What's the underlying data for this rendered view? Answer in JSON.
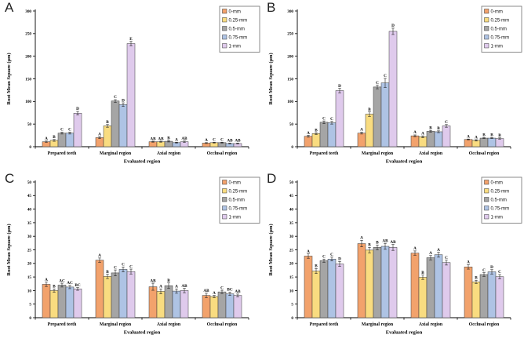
{
  "figure": {
    "background": "#ffffff",
    "axis_color": "#000000",
    "bar_border_color": "#3a3a3a",
    "error_bar_color": "#222222",
    "legend_border_color": "#7f7f7f"
  },
  "panels": [
    {
      "label": "A"
    },
    {
      "label": "B"
    },
    {
      "label": "C"
    },
    {
      "label": "D"
    }
  ],
  "chart_data": [
    {
      "type": "bar",
      "panel_label": "A",
      "ylabel": "Root Mean Square (µm)",
      "xlabel": "Evaluated region",
      "ylim": [
        0,
        300
      ],
      "ytick_step": 50,
      "grid": false,
      "legend_position": "top-right",
      "categories": [
        "Prepared teeth",
        "Marginal region",
        "Axial region",
        "Occlusal region"
      ],
      "series": [
        {
          "name": "0-mm",
          "color": "#F2A26C",
          "values": [
            11,
            20,
            11,
            8
          ],
          "errors": [
            1.5,
            2,
            1,
            1
          ],
          "letters": [
            "A",
            "A",
            "AB",
            "A"
          ]
        },
        {
          "name": "0.25-mm",
          "color": "#F9DC80",
          "values": [
            14,
            46,
            11,
            9
          ],
          "errors": [
            2,
            3,
            1,
            1
          ],
          "letters": [
            "B",
            "B",
            "AB",
            "C"
          ]
        },
        {
          "name": "0.5-mm",
          "color": "#A5A5A5",
          "values": [
            30,
            101,
            12,
            9
          ],
          "errors": [
            2,
            3,
            1.5,
            1
          ],
          "letters": [
            "C",
            "C",
            "B",
            "C"
          ]
        },
        {
          "name": "0.75-mm",
          "color": "#AEC3E4",
          "values": [
            30,
            93,
            9,
            7
          ],
          "errors": [
            2,
            4,
            1,
            1
          ],
          "letters": [
            "C",
            "D",
            "A",
            "AB"
          ]
        },
        {
          "name": "1-mm",
          "color": "#DFCAEC",
          "values": [
            74,
            228,
            11,
            7
          ],
          "errors": [
            4,
            5,
            1.5,
            1
          ],
          "letters": [
            "D",
            "E",
            "AB",
            "AB"
          ]
        }
      ]
    },
    {
      "type": "bar",
      "panel_label": "B",
      "ylabel": "Root Mean Square (µm)",
      "xlabel": "Evaluated region",
      "ylim": [
        0,
        300
      ],
      "ytick_step": 50,
      "grid": false,
      "legend_position": "top-right",
      "categories": [
        "Prepared teeth",
        "Marginal region",
        "Axial region",
        "Occlusal region"
      ],
      "series": [
        {
          "name": "0-mm",
          "color": "#F2A26C",
          "values": [
            23,
            30,
            24,
            16
          ],
          "errors": [
            2,
            2,
            2,
            1
          ],
          "letters": [
            "A",
            "A",
            "A",
            "A"
          ]
        },
        {
          "name": "0.25-mm",
          "color": "#F9DC80",
          "values": [
            29,
            72,
            22,
            14
          ],
          "errors": [
            2,
            5,
            2,
            1.5
          ],
          "letters": [
            "B",
            "B",
            "A",
            "A"
          ]
        },
        {
          "name": "0.5-mm",
          "color": "#A5A5A5",
          "values": [
            54,
            132,
            34,
            19
          ],
          "errors": [
            3,
            4,
            2,
            1
          ],
          "letters": [
            "C",
            "C",
            "B",
            "B"
          ]
        },
        {
          "name": "0.75-mm",
          "color": "#AEC3E4",
          "values": [
            53,
            141,
            33,
            19
          ],
          "errors": [
            3,
            10,
            2,
            1
          ],
          "letters": [
            "C",
            "C",
            "B",
            "B"
          ]
        },
        {
          "name": "1-mm",
          "color": "#DFCAEC",
          "values": [
            124,
            255,
            46,
            18
          ],
          "errors": [
            5,
            7,
            3,
            1.5
          ],
          "letters": [
            "D",
            "D",
            "C",
            "B"
          ]
        }
      ]
    },
    {
      "type": "bar",
      "panel_label": "C",
      "ylabel": "Root Mean Square (µm)",
      "xlabel": "Evaluated region",
      "ylim": [
        0,
        50
      ],
      "ytick_step": 5,
      "grid": false,
      "legend_position": "top-right",
      "categories": [
        "Prepared teeth",
        "Marginal region",
        "Axial region",
        "Occlusal region"
      ],
      "series": [
        {
          "name": "0-mm",
          "color": "#F2A26C",
          "values": [
            12.3,
            21.2,
            11.4,
            8.2
          ],
          "errors": [
            0.8,
            0.8,
            1.3,
            0.8
          ],
          "letters": [
            "A",
            "A",
            "AB",
            "AB"
          ]
        },
        {
          "name": "0.25-mm",
          "color": "#F9DC80",
          "values": [
            10.0,
            15.2,
            9.7,
            7.8
          ],
          "errors": [
            0.6,
            0.8,
            0.9,
            0.4
          ],
          "letters": [
            "B",
            "B",
            "A",
            "A"
          ]
        },
        {
          "name": "0.5-mm",
          "color": "#A5A5A5",
          "values": [
            12.0,
            16.5,
            11.8,
            9.5
          ],
          "errors": [
            0.7,
            1.1,
            1.0,
            0.6
          ],
          "letters": [
            "AC",
            "C",
            "B",
            "C"
          ]
        },
        {
          "name": "0.75-mm",
          "color": "#AEC3E4",
          "values": [
            11.3,
            17.8,
            9.8,
            8.8
          ],
          "errors": [
            0.6,
            0.9,
            0.8,
            0.6
          ],
          "letters": [
            "AC",
            "C",
            "A",
            "BC"
          ]
        },
        {
          "name": "1-mm",
          "color": "#DFCAEC",
          "values": [
            10.6,
            17.0,
            10.0,
            8.2
          ],
          "errors": [
            0.5,
            0.9,
            0.8,
            0.5
          ],
          "letters": [
            "BC",
            "C",
            "AB",
            "AB"
          ]
        }
      ]
    },
    {
      "type": "bar",
      "panel_label": "D",
      "ylabel": "Root Mean Square (µm)",
      "xlabel": "Evaluated region",
      "ylim": [
        0,
        50
      ],
      "ytick_step": 5,
      "grid": false,
      "legend_position": "top-right",
      "categories": [
        "Prepared teeth",
        "Marginal region",
        "Axial region",
        "Occlusal region"
      ],
      "series": [
        {
          "name": "0-mm",
          "color": "#F2A26C",
          "values": [
            22.7,
            27.3,
            23.8,
            18.7
          ],
          "errors": [
            0.8,
            1.2,
            0.8,
            0.8
          ],
          "letters": [
            "A",
            "A",
            "A",
            "A"
          ]
        },
        {
          "name": "0.25-mm",
          "color": "#F9DC80",
          "values": [
            17.2,
            24.9,
            14.9,
            13.2
          ],
          "errors": [
            0.9,
            1.0,
            0.8,
            0.6
          ],
          "letters": [
            "B",
            "B",
            "B",
            "B"
          ]
        },
        {
          "name": "0.5-mm",
          "color": "#A5A5A5",
          "values": [
            21.0,
            25.9,
            22.1,
            15.9
          ],
          "errors": [
            0.6,
            0.9,
            0.8,
            0.7
          ],
          "letters": [
            "C",
            "B",
            "A",
            "C"
          ]
        },
        {
          "name": "0.75-mm",
          "color": "#AEC3E4",
          "values": [
            21.6,
            26.3,
            23.2,
            16.9
          ],
          "errors": [
            0.7,
            1.1,
            0.9,
            0.8
          ],
          "letters": [
            "C",
            "AB",
            "A",
            "D"
          ]
        },
        {
          "name": "1-mm",
          "color": "#DFCAEC",
          "values": [
            19.8,
            25.9,
            20.3,
            15.1
          ],
          "errors": [
            0.9,
            1.1,
            0.9,
            0.8
          ],
          "letters": [
            "D",
            "AB",
            "C",
            "C"
          ]
        }
      ]
    }
  ]
}
